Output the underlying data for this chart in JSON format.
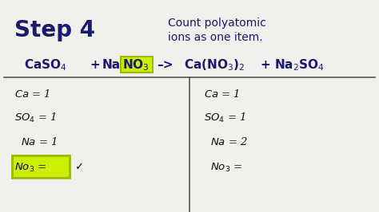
{
  "bg_color": "#f0f0ec",
  "title_step": "Step 4",
  "title_desc_line1": "Count polyatomic",
  "title_desc_line2": "ions as one item.",
  "title_color": "#1a1a6e",
  "eq_color": "#1a1a6e",
  "hw_color": "#111111",
  "highlight_color": "#ccee00",
  "highlight_edge": "#99bb00",
  "step4_fontsize": 20,
  "desc_fontsize": 10,
  "eq_fontsize": 11,
  "hw_fontsize": 9.5
}
